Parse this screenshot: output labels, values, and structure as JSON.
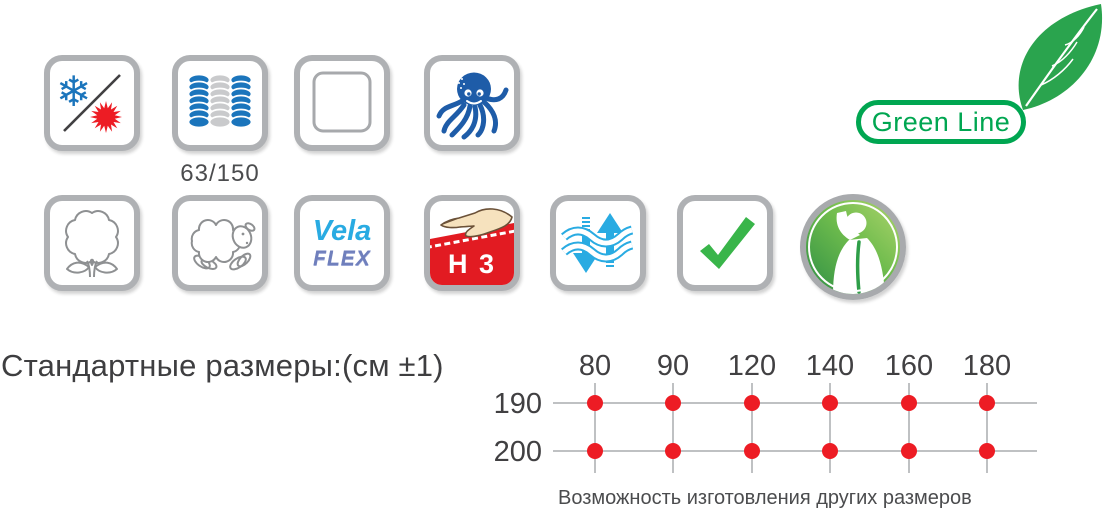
{
  "captions": {
    "spring_count": "63/150",
    "vela_line1": "Vela",
    "vela_line2": "FLEX",
    "hardness": "Н 3",
    "green_line": "Green Line"
  },
  "features": {
    "row1": [
      "winter-summer-sides",
      "spring-block-63-150",
      "blank-square",
      "anti-mite-octopus"
    ],
    "row2": [
      "cotton",
      "wool-sheep",
      "velaflex-foam",
      "hardness-h3",
      "breathable",
      "approved-check",
      "spine-support"
    ]
  },
  "sizes": {
    "title": "Стандартные размеры:(см ±1)",
    "widths": [
      "80",
      "90",
      "120",
      "140",
      "160",
      "180"
    ],
    "lengths": [
      "190",
      "200"
    ],
    "availability": [
      [
        true,
        true,
        true,
        true,
        true,
        true
      ],
      [
        true,
        true,
        true,
        true,
        true,
        true
      ]
    ],
    "note": "Возможность изготовления других размеров"
  },
  "colors": {
    "blue": "#1B75BC",
    "cyan": "#29ABE2",
    "red": "#ED1C24",
    "check_green": "#39B54A",
    "brand_green": "#00A651",
    "outline_gray": "#8E9092",
    "text": "#414042",
    "grid_line": "#BFC1C3",
    "flex_blue": "#6F7FBC"
  }
}
